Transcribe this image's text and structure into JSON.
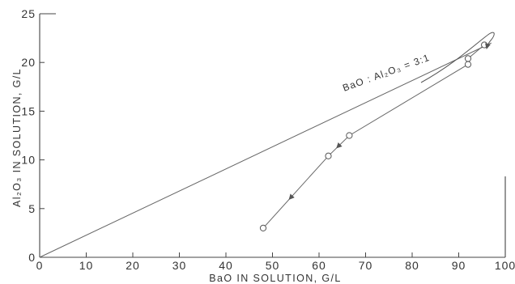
{
  "chart_data": {
    "type": "scatter",
    "title": "",
    "xlabel": "BaO IN SOLUTION, G/L",
    "ylabel": "Al₂O₃ IN SOLUTION, G/L",
    "xlim": [
      0,
      100
    ],
    "ylim": [
      0,
      25
    ],
    "x_ticks": [
      0,
      10,
      20,
      30,
      40,
      50,
      60,
      70,
      80,
      90,
      100
    ],
    "y_ticks": [
      0,
      5,
      10,
      15,
      20,
      25
    ],
    "grid": false,
    "ratio_line": {
      "label": "BaO : Al₂O₃ = 3:1",
      "x": [
        0,
        97
      ],
      "y": [
        0,
        22
      ]
    },
    "series": [
      {
        "points": [
          {
            "x": 95.5,
            "y": 21.8
          },
          {
            "x": 92,
            "y": 20.4
          },
          {
            "x": 92,
            "y": 19.8
          },
          {
            "x": 66.5,
            "y": 12.5
          },
          {
            "x": 62,
            "y": 10.4
          },
          {
            "x": 48,
            "y": 3.0
          }
        ]
      }
    ],
    "annotations": [
      {
        "text": "BaO : Al₂O₃ = 3:1"
      }
    ]
  }
}
